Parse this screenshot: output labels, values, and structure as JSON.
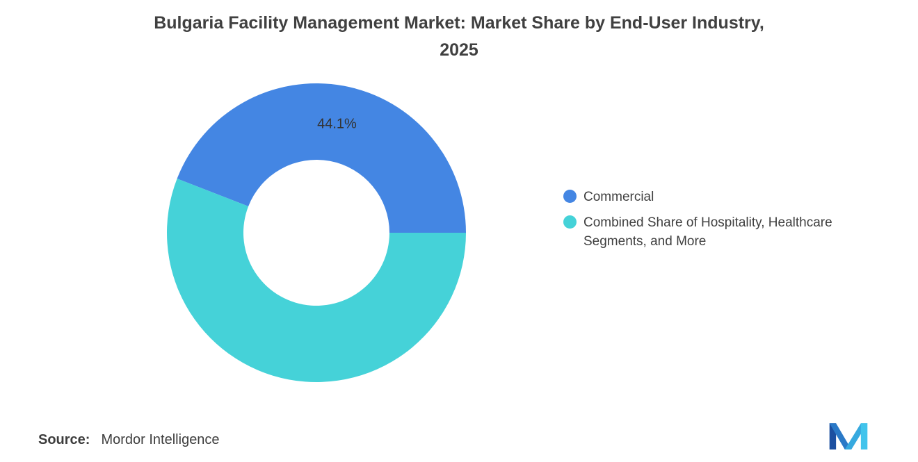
{
  "title": {
    "text": "Bulgaria Facility Management Market: Market Share by End-User Industry, 2025",
    "line1": "Bulgaria Facility Management Market: Market Share by End-User Industry,",
    "line2": "2025"
  },
  "chart_data": {
    "type": "pie",
    "subtype": "donut",
    "title": "Bulgaria Facility Management Market: Market Share by End-User Industry, 2025",
    "series": [
      {
        "label": "Commercial",
        "value": 44.1,
        "color": "#4486E3",
        "data_label": "44.1%"
      },
      {
        "label": "Combined Share of Hospitality, Healthcare Segments, and More",
        "value": 55.9,
        "color": "#45D2D8",
        "data_label": ""
      }
    ],
    "start_angle_deg": 0,
    "direction": "counterclockwise",
    "inner_radius_ratio": 0.49,
    "legend_position": "right",
    "data_label_shown": "44.1%"
  },
  "source": {
    "label": "Source:",
    "value": "Mordor Intelligence"
  },
  "logo": {
    "name": "mordor-intelligence-logo"
  }
}
